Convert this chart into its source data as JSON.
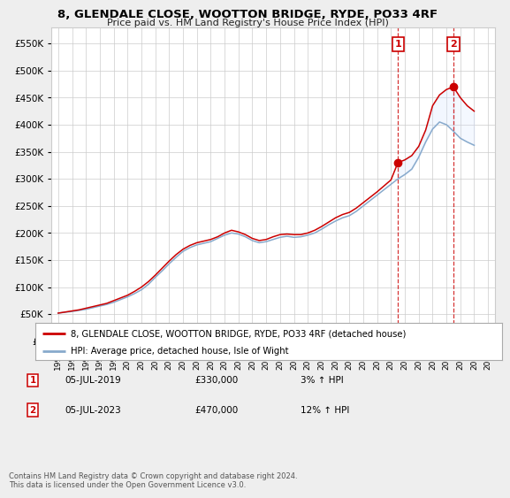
{
  "title": "8, GLENDALE CLOSE, WOOTTON BRIDGE, RYDE, PO33 4RF",
  "subtitle": "Price paid vs. HM Land Registry's House Price Index (HPI)",
  "ytick_vals": [
    0,
    50000,
    100000,
    150000,
    200000,
    250000,
    300000,
    350000,
    400000,
    450000,
    500000,
    550000
  ],
  "ylim": [
    0,
    580000
  ],
  "legend_line1": "8, GLENDALE CLOSE, WOOTTON BRIDGE, RYDE, PO33 4RF (detached house)",
  "legend_line2": "HPI: Average price, detached house, Isle of Wight",
  "footnote": "Contains HM Land Registry data © Crown copyright and database right 2024.\nThis data is licensed under the Open Government Licence v3.0.",
  "sale1_date": "05-JUL-2019",
  "sale1_price": "£330,000",
  "sale1_hpi": "3% ↑ HPI",
  "sale1_year": 2019.5,
  "sale1_value": 330000,
  "sale2_date": "05-JUL-2023",
  "sale2_price": "£470,000",
  "sale2_hpi": "12% ↑ HPI",
  "sale2_year": 2023.5,
  "sale2_value": 470000,
  "line_color_red": "#cc0000",
  "line_color_blue": "#88aacc",
  "bg_color": "#eeeeee",
  "plot_bg_color": "#ffffff",
  "grid_color": "#cccccc",
  "shade_color": "#cce0ff",
  "years": [
    1995,
    1995.5,
    1996,
    1996.5,
    1997,
    1997.5,
    1998,
    1998.5,
    1999,
    1999.5,
    2000,
    2000.5,
    2001,
    2001.5,
    2002,
    2002.5,
    2003,
    2003.5,
    2004,
    2004.5,
    2005,
    2005.5,
    2006,
    2006.5,
    2007,
    2007.5,
    2008,
    2008.5,
    2009,
    2009.5,
    2010,
    2010.5,
    2011,
    2011.5,
    2012,
    2012.5,
    2013,
    2013.5,
    2014,
    2014.5,
    2015,
    2015.5,
    2016,
    2016.5,
    2017,
    2017.5,
    2018,
    2018.5,
    2019,
    2019.5,
    2020,
    2020.5,
    2021,
    2021.5,
    2022,
    2022.5,
    2023,
    2023.5,
    2024,
    2024.5,
    2025
  ],
  "hpi_values": [
    52000,
    53500,
    55000,
    57000,
    59000,
    62000,
    65000,
    68000,
    72000,
    77000,
    82000,
    88000,
    95000,
    105000,
    118000,
    130000,
    143000,
    155000,
    166000,
    173000,
    178000,
    181000,
    184000,
    190000,
    196000,
    200000,
    198000,
    193000,
    186000,
    182000,
    184000,
    188000,
    192000,
    194000,
    192000,
    193000,
    196000,
    200000,
    207000,
    215000,
    222000,
    228000,
    232000,
    240000,
    250000,
    260000,
    270000,
    280000,
    290000,
    300000,
    308000,
    318000,
    340000,
    368000,
    392000,
    405000,
    400000,
    388000,
    375000,
    368000,
    362000
  ],
  "price_values": [
    52000,
    54000,
    56000,
    58000,
    61000,
    64000,
    67000,
    70000,
    75000,
    80000,
    85000,
    92000,
    100000,
    110000,
    122000,
    135000,
    148000,
    160000,
    170000,
    177000,
    182000,
    185000,
    188000,
    193000,
    200000,
    205000,
    202000,
    197000,
    190000,
    186000,
    188000,
    193000,
    197000,
    198000,
    197000,
    197000,
    200000,
    205000,
    212000,
    220000,
    228000,
    234000,
    238000,
    246000,
    256000,
    266000,
    276000,
    287000,
    298000,
    330000,
    335000,
    343000,
    360000,
    390000,
    435000,
    455000,
    465000,
    470000,
    450000,
    435000,
    425000
  ]
}
